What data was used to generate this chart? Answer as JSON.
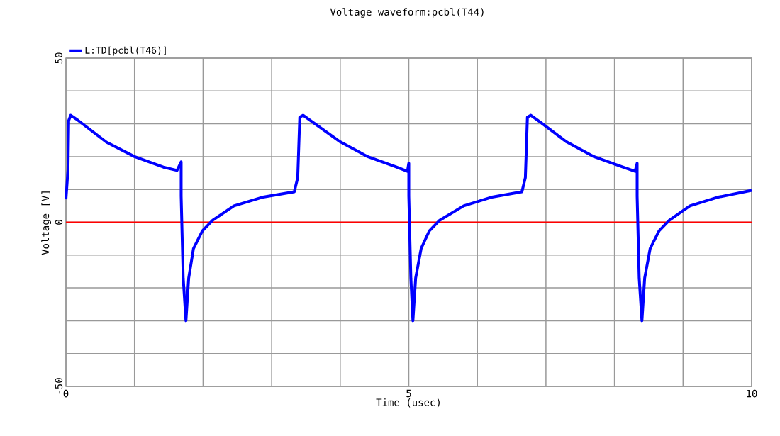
{
  "chart_data": {
    "type": "line",
    "title": "Voltage waveform:pcbl(T44)",
    "xlabel": "Time (usec)",
    "ylabel": "Voltage [V]",
    "xlim": [
      0,
      10
    ],
    "ylim": [
      -50,
      50
    ],
    "xticks": [
      0,
      {
        "value": 1,
        "label": null
      },
      {
        "value": 2,
        "label": null
      },
      {
        "value": 3,
        "label": null
      },
      {
        "value": 4,
        "label": null
      },
      5,
      {
        "value": 6,
        "label": null
      },
      {
        "value": 7,
        "label": null
      },
      {
        "value": 8,
        "label": null
      },
      {
        "value": 9,
        "label": null
      },
      10
    ],
    "yticks": [
      -50,
      {
        "value": -40,
        "label": null
      },
      {
        "value": -30,
        "label": null
      },
      {
        "value": -20,
        "label": null
      },
      {
        "value": -10,
        "label": null
      },
      0,
      {
        "value": 10,
        "label": null
      },
      {
        "value": 20,
        "label": null
      },
      {
        "value": 30,
        "label": null
      },
      {
        "value": 40,
        "label": null
      },
      50
    ],
    "grid": true,
    "legend": "top left",
    "ref_lines": [
      {
        "axis": "y",
        "value": 0,
        "color": "#ff0000"
      }
    ],
    "series": [
      {
        "name": "L:TD[pcbl(T46)]",
        "color": "#0000ff",
        "x": [
          0,
          0.03,
          0.04,
          0.07,
          0.18,
          0.59,
          1.0,
          1.42,
          1.62,
          1.68,
          1.68,
          1.71,
          1.75,
          1.79,
          1.86,
          1.99,
          2.14,
          2.45,
          2.86,
          3.33,
          3.38,
          3.41,
          3.46,
          3.6,
          4.0,
          4.4,
          4.8,
          4.98,
          5.0,
          5.0,
          5.03,
          5.06,
          5.1,
          5.18,
          5.3,
          5.45,
          5.8,
          6.2,
          6.65,
          6.7,
          6.73,
          6.78,
          6.92,
          7.3,
          7.7,
          8.1,
          8.3,
          8.33,
          8.33,
          8.36,
          8.4,
          8.44,
          8.52,
          8.65,
          8.8,
          9.1,
          9.5,
          10
        ],
        "values": [
          7,
          16,
          31,
          32.6,
          31,
          24.4,
          20,
          16.8,
          15.8,
          18.4,
          8,
          -17,
          -30,
          -17,
          -8,
          -2.6,
          0.6,
          5,
          7.6,
          9.3,
          13.6,
          32,
          32.6,
          30.5,
          24.5,
          20,
          17,
          15.5,
          18,
          8,
          -17,
          -30,
          -17,
          -8,
          -2.6,
          0.6,
          5,
          7.6,
          9.3,
          13.6,
          32,
          32.6,
          30.5,
          24.5,
          20,
          17,
          15.5,
          18,
          8,
          -17,
          -30,
          -17,
          -8,
          -2.6,
          0.6,
          5,
          7.6,
          9.7
        ]
      }
    ]
  }
}
